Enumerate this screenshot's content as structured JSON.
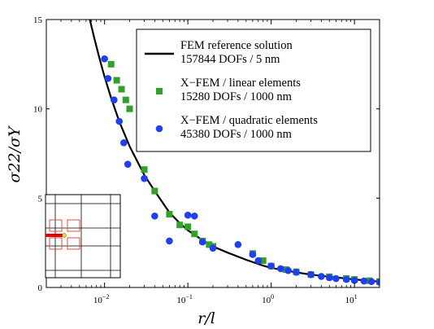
{
  "chart_data": {
    "type": "scatter",
    "xlabel": "r/l",
    "ylabel": "σ22/σY",
    "xscale": "log",
    "xlim": [
      0.002,
      20
    ],
    "ylim": [
      0,
      15
    ],
    "yticks": [
      "0",
      "5",
      "10",
      "15"
    ],
    "xticks": [
      {
        "value": 0.01,
        "base": "10",
        "exp": "−2"
      },
      {
        "value": 0.1,
        "base": "10",
        "exp": "−1"
      },
      {
        "value": 1,
        "base": "10",
        "exp": "0"
      },
      {
        "value": 10,
        "base": "10",
        "exp": "1"
      }
    ],
    "grid": false,
    "legend_position": "top-right",
    "series": [
      {
        "name_lines": [
          "FEM reference solution",
          "157844 DOFs / 5 nm"
        ],
        "kind": "line",
        "color": "#000000",
        "x": [
          0.0065,
          0.0075,
          0.0085,
          0.01,
          0.012,
          0.015,
          0.02,
          0.03,
          0.04,
          0.06,
          0.08,
          0.1,
          0.15,
          0.2,
          0.3,
          0.5,
          0.8,
          1,
          2,
          3,
          5,
          8,
          10,
          15,
          20
        ],
        "y": [
          15.2,
          14.0,
          13.0,
          11.8,
          10.6,
          9.3,
          7.9,
          6.3,
          5.4,
          4.2,
          3.6,
          3.2,
          2.65,
          2.3,
          1.95,
          1.55,
          1.22,
          1.1,
          0.85,
          0.72,
          0.6,
          0.5,
          0.45,
          0.38,
          0.33
        ]
      },
      {
        "name_lines": [
          "X−FEM / linear elements",
          "15280 DOFs / 1000 nm"
        ],
        "kind": "square",
        "color": "#33a02c",
        "x": [
          0.012,
          0.014,
          0.016,
          0.018,
          0.02,
          0.03,
          0.04,
          0.06,
          0.08,
          0.1,
          0.12,
          0.15,
          0.18,
          0.2,
          0.6,
          0.8,
          1.0,
          1.5,
          2.0,
          3.0,
          5.0,
          8.0,
          10,
          15,
          20
        ],
        "y": [
          12.5,
          11.6,
          11.1,
          10.5,
          10.0,
          6.6,
          5.4,
          4.1,
          3.5,
          3.4,
          3.0,
          2.6,
          2.4,
          2.3,
          1.9,
          1.5,
          1.2,
          1.0,
          0.88,
          0.72,
          0.6,
          0.5,
          0.45,
          0.38,
          0.33
        ]
      },
      {
        "name_lines": [
          "X−FEM / quadratic elements",
          "45380 DOFs / 1000 nm"
        ],
        "kind": "circle",
        "color": "#1f3ff0",
        "x": [
          0.01,
          0.011,
          0.013,
          0.015,
          0.017,
          0.019,
          0.03,
          0.04,
          0.06,
          0.1,
          0.12,
          0.15,
          0.2,
          0.4,
          0.6,
          0.7,
          1.0,
          1.3,
          1.6,
          2.0,
          3.0,
          4.0,
          5.0,
          6.0,
          8.0,
          10,
          13,
          16,
          20
        ],
        "y": [
          12.8,
          11.7,
          10.5,
          9.3,
          8.1,
          6.9,
          6.1,
          4.0,
          2.6,
          4.05,
          4.0,
          2.55,
          2.2,
          2.4,
          1.85,
          1.5,
          1.2,
          1.05,
          0.95,
          0.85,
          0.72,
          0.62,
          0.55,
          0.5,
          0.45,
          0.4,
          0.36,
          0.33,
          0.3
        ]
      }
    ]
  }
}
